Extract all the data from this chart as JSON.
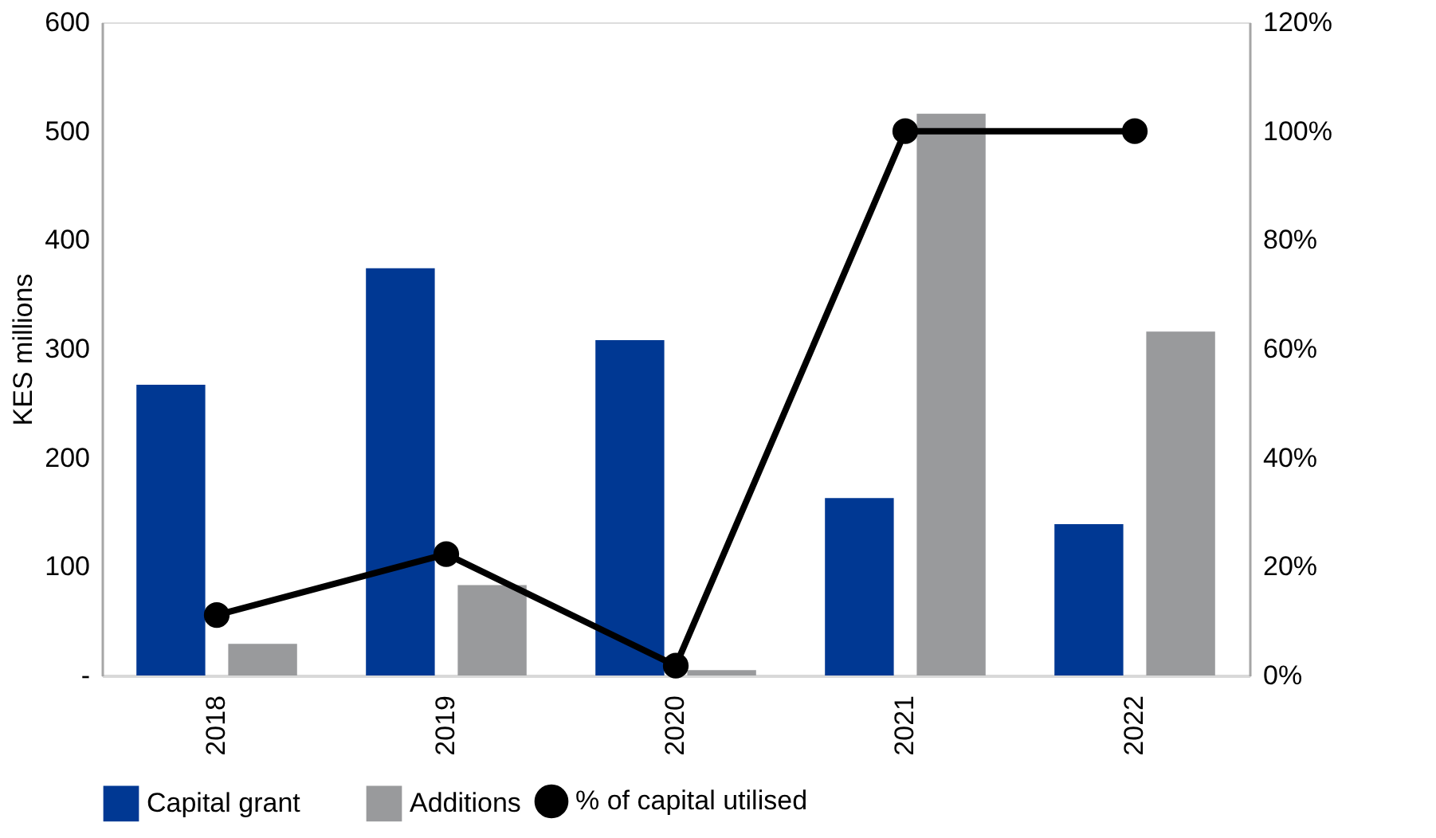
{
  "chart_data": {
    "type": "bar",
    "ylabel": "KES millions",
    "categories": [
      "2018",
      "2019",
      "2020",
      "2021",
      "2022"
    ],
    "series": [
      {
        "name": "Capital grant",
        "color": "#003893",
        "values": [
          267,
          374,
          308,
          163,
          139
        ]
      },
      {
        "name": "Additions",
        "color": "#999a9c",
        "values": [
          29,
          83,
          5,
          516,
          316
        ]
      },
      {
        "name": "% of capital utilised",
        "type": "line",
        "axis": "y2",
        "color": "#000000",
        "marker": "circle",
        "values": [
          11.1,
          22.3,
          1.8,
          100,
          100
        ]
      }
    ],
    "ylim": [
      0,
      600
    ],
    "yticks": [
      {
        "value": 0,
        "label": "-"
      },
      100,
      200,
      300,
      400,
      500,
      600
    ],
    "y2lim": [
      0,
      120
    ],
    "y2ticks": [
      {
        "value": 0,
        "label": "0%"
      },
      {
        "value": 20,
        "label": "20%"
      },
      {
        "value": 40,
        "label": "40%"
      },
      {
        "value": 60,
        "label": "60%"
      },
      {
        "value": 80,
        "label": "80%"
      },
      {
        "value": 100,
        "label": "100%"
      },
      {
        "value": 120,
        "label": "120%"
      }
    ],
    "grid": false,
    "legend": "bottom"
  }
}
